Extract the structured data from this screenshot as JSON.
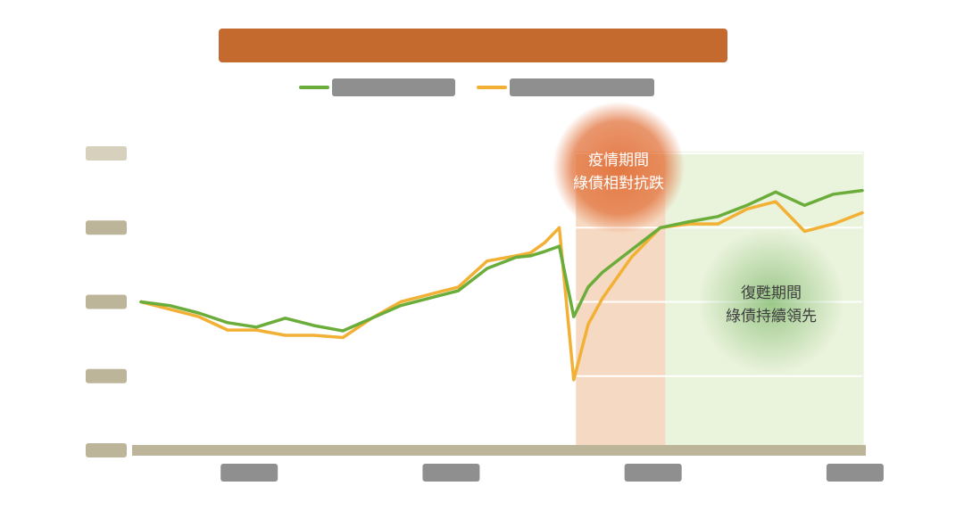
{
  "colors": {
    "green_series": "#6aad3a",
    "yellow_series": "#f2b035",
    "title_block": "#c46a2e",
    "tick_label_block": "#bdb59a",
    "covid_band": "#f6d9c2",
    "recovery_band": "#eaf3dc",
    "orange_bubble": "#e2733c",
    "green_bubble": "#7fb86b"
  },
  "annotations": {
    "covid_line1": "疫情期間",
    "covid_line2": "綠債相對抗跌",
    "recovery_line1": "復甦期間",
    "recovery_line2": "綠債持續領先"
  },
  "chart_data": {
    "type": "line",
    "title": "",
    "xlabel": "",
    "ylabel": "",
    "grid": true,
    "legend": "top-center",
    "ylim": [
      0,
      4
    ],
    "yticks": [
      0,
      1,
      2,
      3,
      4
    ],
    "x": [
      0,
      4,
      8,
      12,
      16,
      20,
      24,
      28,
      32,
      36,
      40,
      44,
      48,
      52,
      54,
      56,
      58,
      60,
      62,
      64,
      68,
      72,
      76,
      80,
      84,
      88,
      92,
      96,
      100
    ],
    "series": [
      {
        "name": "",
        "values": [
          2.0,
          1.95,
          1.85,
          1.72,
          1.66,
          1.78,
          1.68,
          1.61,
          1.78,
          1.95,
          2.05,
          2.15,
          2.45,
          2.6,
          2.62,
          2.68,
          2.75,
          1.8,
          2.2,
          2.4,
          2.7,
          3.0,
          3.08,
          3.15,
          3.3,
          3.48,
          3.3,
          3.45,
          3.5
        ]
      },
      {
        "name": "",
        "values": [
          2.0,
          1.9,
          1.8,
          1.62,
          1.62,
          1.55,
          1.55,
          1.52,
          1.78,
          2.0,
          2.1,
          2.2,
          2.55,
          2.62,
          2.66,
          2.8,
          3.0,
          0.95,
          1.7,
          2.05,
          2.6,
          3.0,
          3.05,
          3.05,
          3.25,
          3.35,
          2.95,
          3.05,
          3.2
        ]
      }
    ]
  }
}
